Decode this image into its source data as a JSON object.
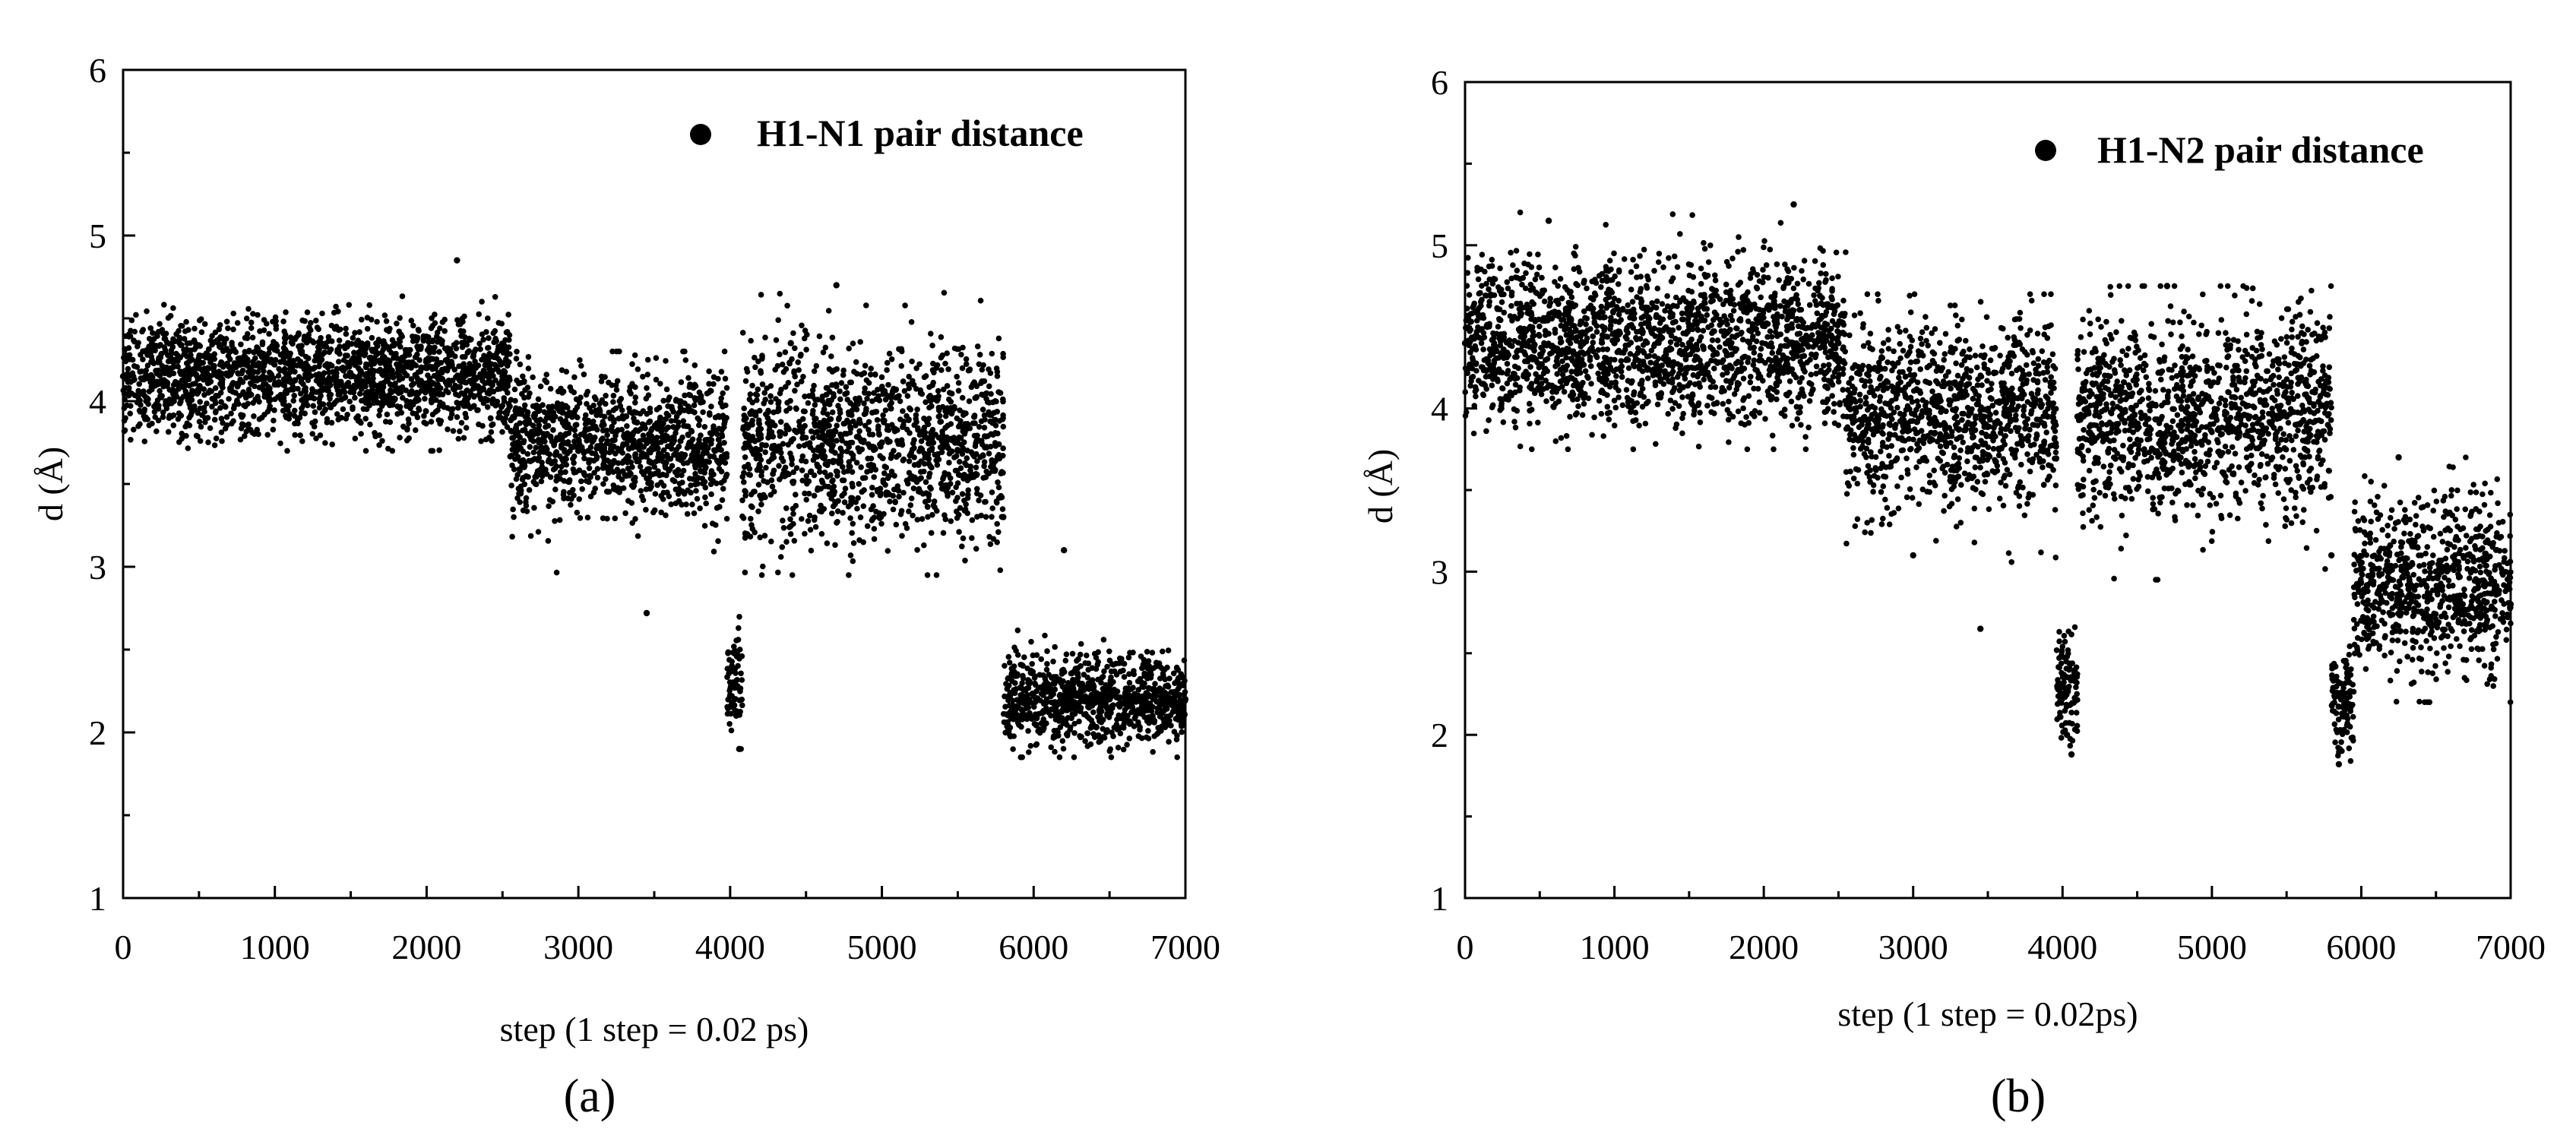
{
  "chart_data": [
    {
      "type": "scatter",
      "panel_label": "(a)",
      "xlabel": "step (1 step = 0.02 ps)",
      "ylabel": "d (Å)",
      "xlim": [
        0,
        7000
      ],
      "ylim": [
        1,
        6
      ],
      "xticks": [
        0,
        1000,
        2000,
        3000,
        4000,
        5000,
        6000,
        7000
      ],
      "yticks": [
        1,
        2,
        3,
        4,
        5,
        6
      ],
      "legend_position": "top-right",
      "marker_color": "#000000",
      "series": [
        {
          "name": "H1-N1 pair distance",
          "segments": [
            {
              "x_range": [
                0,
                2550
              ],
              "y_mean": 4.15,
              "y_min": 3.7,
              "y_max": 4.85
            },
            {
              "x_range": [
                2550,
                3980
              ],
              "y_mean": 3.75,
              "y_min": 2.7,
              "y_max": 4.3
            },
            {
              "x_range": [
                3980,
                4080
              ],
              "y_mean": 2.3,
              "y_min": 1.9,
              "y_max": 4.0
            },
            {
              "x_range": [
                4080,
                5800
              ],
              "y_mean": 3.75,
              "y_min": 2.95,
              "y_max": 4.7
            },
            {
              "x_range": [
                5800,
                7000
              ],
              "y_mean": 2.2,
              "y_min": 1.85,
              "y_max": 3.1
            }
          ],
          "points": [
            [
              0,
              4.15
            ],
            [
              500,
              4.2
            ],
            [
              1000,
              4.1
            ],
            [
              1500,
              4.15
            ],
            [
              2000,
              4.2
            ],
            [
              2200,
              4.85
            ],
            [
              2500,
              4.15
            ],
            [
              2600,
              3.75
            ],
            [
              3000,
              3.7
            ],
            [
              3450,
              2.72
            ],
            [
              3500,
              3.75
            ],
            [
              3900,
              3.7
            ],
            [
              4020,
              2.3
            ],
            [
              4060,
              1.9
            ],
            [
              4100,
              3.8
            ],
            [
              4400,
              4.35
            ],
            [
              4700,
              4.7
            ],
            [
              5000,
              3.75
            ],
            [
              5500,
              3.7
            ],
            [
              5800,
              3.3
            ],
            [
              5850,
              2.1
            ],
            [
              6200,
              3.1
            ],
            [
              6500,
              2.2
            ],
            [
              7000,
              2.2
            ]
          ]
        }
      ]
    },
    {
      "type": "scatter",
      "panel_label": "(b)",
      "xlabel": "step (1 step = 0.02ps)",
      "ylabel": "d (Å)",
      "xlim": [
        0,
        7000
      ],
      "ylim": [
        1,
        6
      ],
      "xticks": [
        0,
        1000,
        2000,
        3000,
        4000,
        5000,
        6000,
        7000
      ],
      "yticks": [
        1,
        2,
        3,
        4,
        5,
        6
      ],
      "legend_position": "top-right",
      "marker_color": "#000000",
      "series": [
        {
          "name": "H1-N2 pair distance",
          "segments": [
            {
              "x_range": [
                0,
                2550
              ],
              "y_mean": 4.4,
              "y_min": 3.75,
              "y_max": 5.25
            },
            {
              "x_range": [
                2550,
                3960
              ],
              "y_mean": 3.95,
              "y_min": 2.65,
              "y_max": 4.7
            },
            {
              "x_range": [
                3960,
                4100
              ],
              "y_mean": 2.3,
              "y_min": 1.88,
              "y_max": 4.0
            },
            {
              "x_range": [
                4100,
                5800
              ],
              "y_mean": 3.95,
              "y_min": 2.95,
              "y_max": 4.75
            },
            {
              "x_range": [
                5800,
                5950
              ],
              "y_mean": 2.2,
              "y_min": 1.82,
              "y_max": 2.6
            },
            {
              "x_range": [
                5950,
                7000
              ],
              "y_mean": 2.9,
              "y_min": 2.2,
              "y_max": 3.7
            }
          ],
          "points": [
            [
              0,
              4.4
            ],
            [
              560,
              5.15
            ],
            [
              1000,
              4.4
            ],
            [
              1500,
              4.4
            ],
            [
              2200,
              5.25
            ],
            [
              2500,
              4.4
            ],
            [
              2600,
              3.95
            ],
            [
              3000,
              3.1
            ],
            [
              3450,
              2.65
            ],
            [
              3900,
              3.95
            ],
            [
              4030,
              2.0
            ],
            [
              4060,
              1.88
            ],
            [
              4100,
              3.95
            ],
            [
              4700,
              4.75
            ],
            [
              5000,
              3.95
            ],
            [
              5500,
              3.95
            ],
            [
              5800,
              3.1
            ],
            [
              5850,
              1.82
            ],
            [
              6000,
              2.7
            ],
            [
              6250,
              3.7
            ],
            [
              6500,
              3.0
            ],
            [
              7000,
              2.8
            ]
          ]
        }
      ]
    }
  ]
}
